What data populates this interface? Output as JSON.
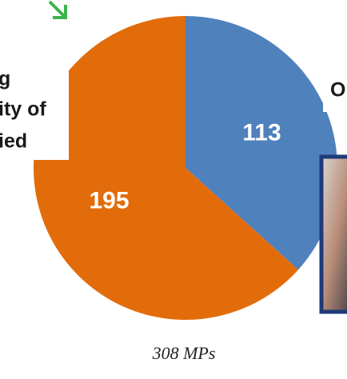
{
  "chart_data": {
    "type": "pie",
    "values": [
      113,
      195
    ],
    "colors": [
      "#4f81bd",
      "#e36c0a"
    ],
    "annotations": [
      "g",
      "ity of",
      "ied",
      "O"
    ],
    "caption": "308 MPs"
  }
}
